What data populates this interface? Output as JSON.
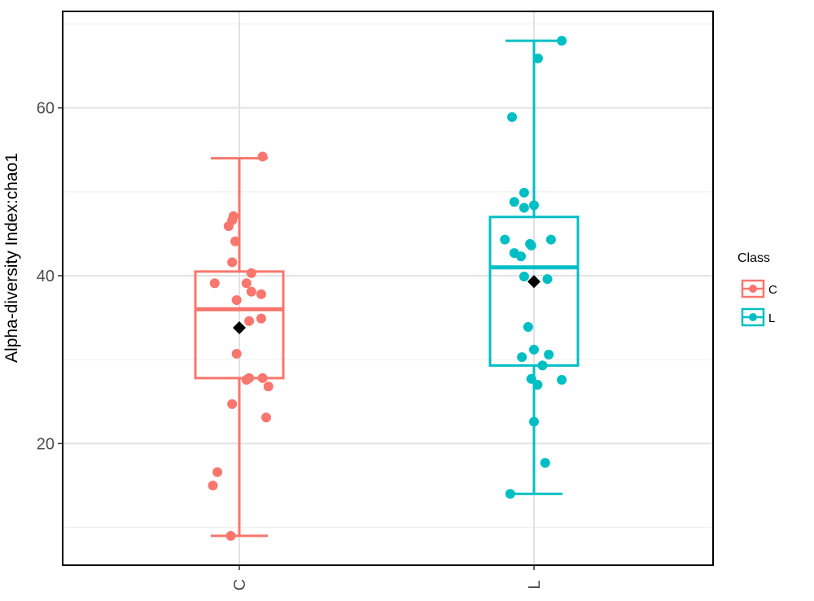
{
  "chart_data": {
    "type": "box",
    "ylabel": "Alpha-diversity Index:chao1",
    "xlabel": "",
    "categories": [
      "C",
      "L"
    ],
    "ylim": [
      5.5,
      71.5
    ],
    "y_ticks": [
      20,
      40,
      60
    ],
    "y_minor_ticks": [
      10,
      30,
      50,
      70
    ],
    "grid": true,
    "legend": {
      "title": "Class",
      "position": "right",
      "entries": [
        "C",
        "L"
      ]
    },
    "series": [
      {
        "name": "C",
        "color": "#F8766D",
        "whisker_low": 9,
        "q1": 27.8,
        "median": 36,
        "q3": 40.5,
        "whisker_high": 54,
        "mean": 33.8,
        "points": [
          {
            "dx": 0.52,
            "y": 54.2
          },
          {
            "dx": -0.13,
            "y": 47.1
          },
          {
            "dx": -0.16,
            "y": 46.6
          },
          {
            "dx": -0.24,
            "y": 45.9
          },
          {
            "dx": -0.09,
            "y": 44.1
          },
          {
            "dx": -0.16,
            "y": 41.6
          },
          {
            "dx": 0.27,
            "y": 40.3
          },
          {
            "dx": -0.55,
            "y": 39.1
          },
          {
            "dx": 0.16,
            "y": 39.1
          },
          {
            "dx": 0.27,
            "y": 38.1
          },
          {
            "dx": 0.49,
            "y": 37.8
          },
          {
            "dx": -0.06,
            "y": 37.1
          },
          {
            "dx": 0.49,
            "y": 34.9
          },
          {
            "dx": 0.22,
            "y": 34.6
          },
          {
            "dx": -0.06,
            "y": 30.7
          },
          {
            "dx": 0.22,
            "y": 27.8
          },
          {
            "dx": 0.52,
            "y": 27.8
          },
          {
            "dx": 0.16,
            "y": 27.6
          },
          {
            "dx": 0.65,
            "y": 26.8
          },
          {
            "dx": -0.16,
            "y": 24.7
          },
          {
            "dx": 0.6,
            "y": 23.1
          },
          {
            "dx": -0.49,
            "y": 16.6
          },
          {
            "dx": -0.59,
            "y": 15.0
          },
          {
            "dx": -0.19,
            "y": 9.0
          }
        ]
      },
      {
        "name": "L",
        "color": "#00BFC4",
        "whisker_low": 14,
        "q1": 29.3,
        "median": 41,
        "q3": 47,
        "whisker_high": 68,
        "mean": 39.3,
        "points": [
          {
            "dx": 0.62,
            "y": 68.0
          },
          {
            "dx": 0.09,
            "y": 65.9
          },
          {
            "dx": -0.49,
            "y": 58.9
          },
          {
            "dx": -0.22,
            "y": 49.9
          },
          {
            "dx": -0.44,
            "y": 48.8
          },
          {
            "dx": -0.22,
            "y": 48.1
          },
          {
            "dx": 0.0,
            "y": 48.4
          },
          {
            "dx": -0.65,
            "y": 44.3
          },
          {
            "dx": 0.38,
            "y": 44.3
          },
          {
            "dx": -0.06,
            "y": 43.6
          },
          {
            "dx": -0.09,
            "y": 43.8
          },
          {
            "dx": -0.44,
            "y": 42.7
          },
          {
            "dx": -0.29,
            "y": 42.3
          },
          {
            "dx": -0.22,
            "y": 39.9
          },
          {
            "dx": 0.3,
            "y": 39.6
          },
          {
            "dx": -0.13,
            "y": 33.9
          },
          {
            "dx": 0.0,
            "y": 31.2
          },
          {
            "dx": -0.27,
            "y": 30.3
          },
          {
            "dx": 0.33,
            "y": 30.6
          },
          {
            "dx": 0.19,
            "y": 29.3
          },
          {
            "dx": -0.06,
            "y": 27.7
          },
          {
            "dx": 0.08,
            "y": 27.0
          },
          {
            "dx": 0.62,
            "y": 27.6
          },
          {
            "dx": 0.0,
            "y": 22.6
          },
          {
            "dx": 0.25,
            "y": 17.7
          },
          {
            "dx": -0.53,
            "y": 14.0
          }
        ]
      }
    ]
  }
}
